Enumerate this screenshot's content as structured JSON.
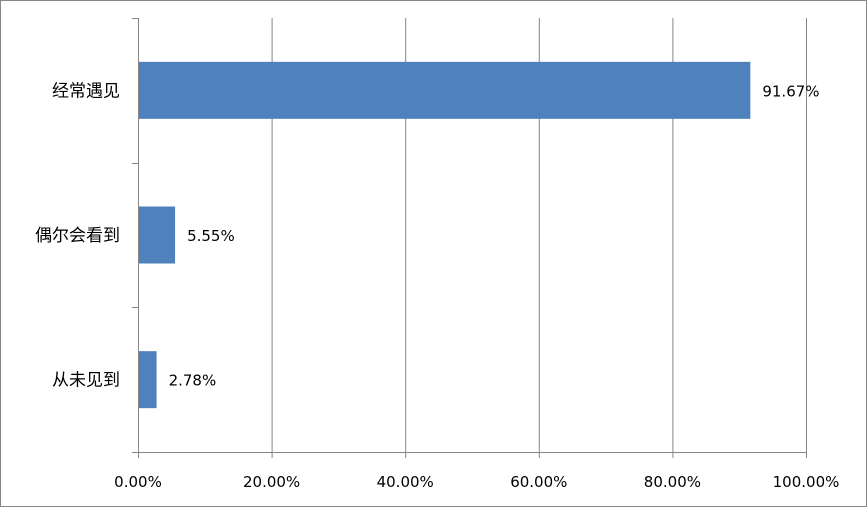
{
  "chart_data": {
    "type": "bar",
    "orientation": "horizontal",
    "categories": [
      "经常遇见",
      "偶尔会看到",
      "从未见到"
    ],
    "values": [
      91.67,
      5.55,
      2.78
    ],
    "data_labels": [
      "91.67%",
      "5.55%",
      "2.78%"
    ],
    "xlim": [
      0,
      100
    ],
    "x_ticks": [
      0,
      20,
      40,
      60,
      80,
      100
    ],
    "x_tick_labels": [
      "0.00%",
      "20.00%",
      "40.00%",
      "60.00%",
      "80.00%",
      "100.00%"
    ],
    "grid": "vertical",
    "legend": "none",
    "title": "",
    "xlabel": "",
    "ylabel": "",
    "bar_color": "#4F81BD",
    "grid_color": "#868686"
  }
}
